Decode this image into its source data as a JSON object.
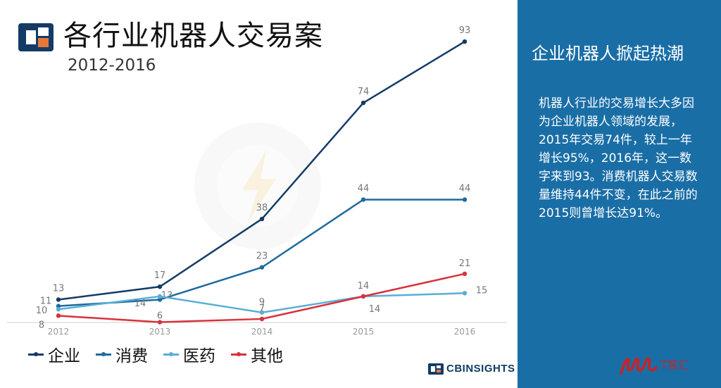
{
  "header": {
    "title": "各行业机器人交易案",
    "subtitle": "2012-2016"
  },
  "panel": {
    "title": "企业机器人掀起热潮",
    "body": "机器人行业的交易增长大多因为企业机器人领域的发展，2015年交易74件，较上一年增长95%，2016年，这一数字来到93。消费机器人交易数量维持44件不变，在此之前的2015则曾增长达91%。"
  },
  "brand": {
    "name": "CBINSIGHTS"
  },
  "watermark": {
    "text": "T客汇"
  },
  "colors": {
    "panel_bg": "#1a6ea6",
    "qiye": "#143b66",
    "xiaofei": "#1e6b9c",
    "yiyao": "#5aaed6",
    "qita": "#d8323c"
  },
  "chart_data": {
    "type": "line",
    "x": [
      "2012",
      "2013",
      "2014",
      "2015",
      "2016"
    ],
    "ylim": [
      0,
      100
    ],
    "grid": false,
    "legend_position": "bottom",
    "series": [
      {
        "name": "企业",
        "color": "#143b66",
        "values": [
          13,
          17,
          38,
          74,
          93
        ]
      },
      {
        "name": "消费",
        "color": "#1e6b9c",
        "values": [
          11,
          13,
          23,
          44,
          44
        ]
      },
      {
        "name": "医药",
        "color": "#5aaed6",
        "values": [
          10,
          14,
          9,
          14,
          15
        ]
      },
      {
        "name": "其他",
        "color": "#d8323c",
        "values": [
          8,
          6,
          7,
          14,
          21
        ]
      }
    ]
  }
}
